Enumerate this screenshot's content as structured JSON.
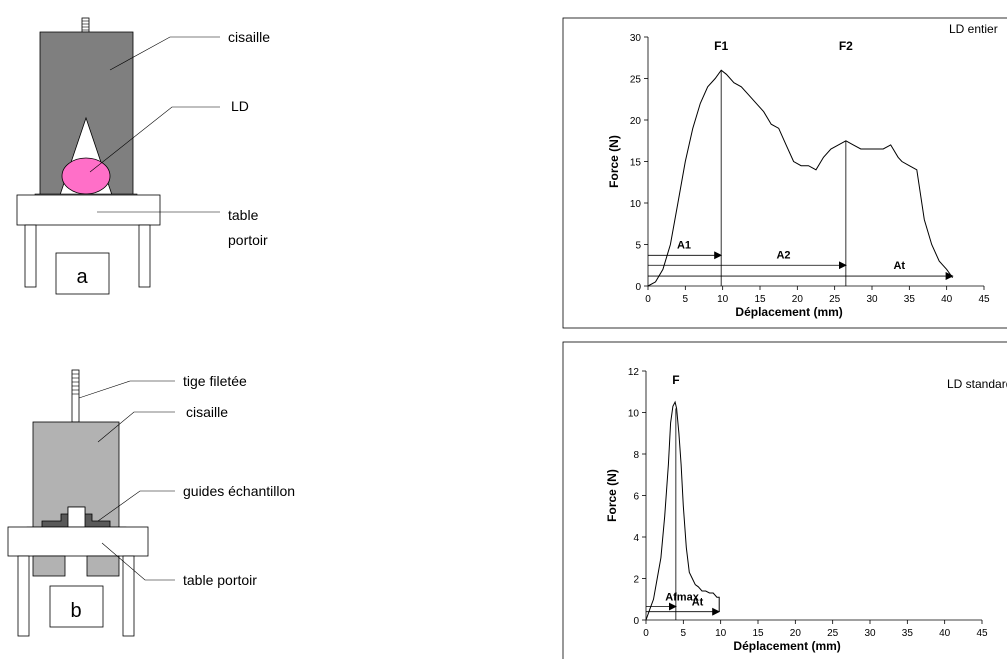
{
  "diagram_a": {
    "panel_label": "a",
    "labels": {
      "cisaille": "cisaille",
      "ld": "LD",
      "table_line1": "table",
      "table_line2": "portoir"
    }
  },
  "diagram_b": {
    "panel_label": "b",
    "labels": {
      "tige": "tige filetée",
      "cisaille": "cisaille",
      "guides": "guides échantillon",
      "table": "table portoir"
    }
  },
  "colors": {
    "shear_dark": "#7f7f7f",
    "shear_light": "#b2b2b2",
    "guide": "#595959",
    "sample_pink": "#ff6fc8"
  },
  "chart_data": [
    {
      "type": "line",
      "title": "LD entier",
      "xlabel": "Déplacement (mm)",
      "ylabel": "Force (N)",
      "xlim": [
        0,
        45
      ],
      "ylim": [
        0,
        30
      ],
      "xticks": [
        "0",
        "5",
        "10",
        "15",
        "20",
        "25",
        "30",
        "35",
        "40",
        "45"
      ],
      "yticks": [
        "0",
        "5",
        "10",
        "15",
        "20",
        "25",
        "30"
      ],
      "series": [
        {
          "x": [
            0,
            1,
            2,
            3,
            4,
            5,
            6,
            7,
            8,
            9,
            9.8,
            10.5,
            11.5,
            12.5,
            13.5,
            14.5,
            15.5,
            16.5,
            17.5,
            18.5,
            19.5,
            20.5,
            21.5,
            22.5,
            23.5,
            24.5,
            25.5,
            26.5,
            27.5,
            28.5,
            29.5,
            30.5,
            31.5,
            32.5,
            33.5,
            34,
            35,
            36,
            37,
            38,
            39,
            40,
            40.8
          ],
          "y": [
            0,
            0.5,
            2,
            5,
            10,
            15,
            19,
            22,
            24,
            25,
            26,
            25.5,
            24.5,
            24,
            23,
            22,
            21,
            19.5,
            19,
            17,
            15,
            14.5,
            14.5,
            14,
            15.5,
            16.5,
            17,
            17.5,
            17,
            16.5,
            16.5,
            16.5,
            16.5,
            17,
            15.5,
            15,
            14.5,
            14,
            8,
            5,
            3,
            2,
            1
          ]
        }
      ],
      "markers": [
        {
          "label": "F1",
          "x": 9.8
        },
        {
          "label": "F2",
          "x": 26.5
        }
      ],
      "arrows": [
        {
          "label": "A1",
          "x_end": 9.8,
          "y": 3.7
        },
        {
          "label": "A2",
          "x_end": 26.5,
          "y": 2.5
        },
        {
          "label": "At",
          "x_end": 40.8,
          "y": 1.2
        }
      ]
    },
    {
      "type": "line",
      "title": "LD standardise",
      "xlabel": "Déplacement (mm)",
      "ylabel": "Force (N)",
      "xlim": [
        0,
        45
      ],
      "ylim": [
        0,
        12
      ],
      "xticks": [
        "0",
        "5",
        "10",
        "15",
        "20",
        "25",
        "30",
        "35",
        "40",
        "45"
      ],
      "yticks": [
        "0",
        "2",
        "4",
        "6",
        "8",
        "10",
        "12"
      ],
      "series": [
        {
          "x": [
            0,
            0.5,
            1,
            1.5,
            2,
            2.5,
            3,
            3.3,
            3.6,
            3.9,
            4.1,
            4.4,
            4.7,
            5,
            5.4,
            5.8,
            6.2,
            6.6,
            7,
            7.5,
            8,
            8.5,
            9,
            9.5,
            9.8,
            9.8
          ],
          "y": [
            0,
            0.5,
            1,
            2,
            3,
            5,
            7.5,
            9.5,
            10.3,
            10.5,
            10.2,
            9,
            7.5,
            5.5,
            3.5,
            2.3,
            2,
            1.7,
            1.6,
            1.4,
            1.4,
            1.3,
            1.3,
            1.1,
            1.1,
            0.4
          ]
        }
      ],
      "markers": [
        {
          "label": "F",
          "x": 4.0
        }
      ],
      "arrows": [
        {
          "label": "Afmax",
          "x_end": 4.0,
          "y": 0.65
        },
        {
          "label": "At",
          "x_end": 9.8,
          "y": 0.4
        }
      ]
    }
  ]
}
